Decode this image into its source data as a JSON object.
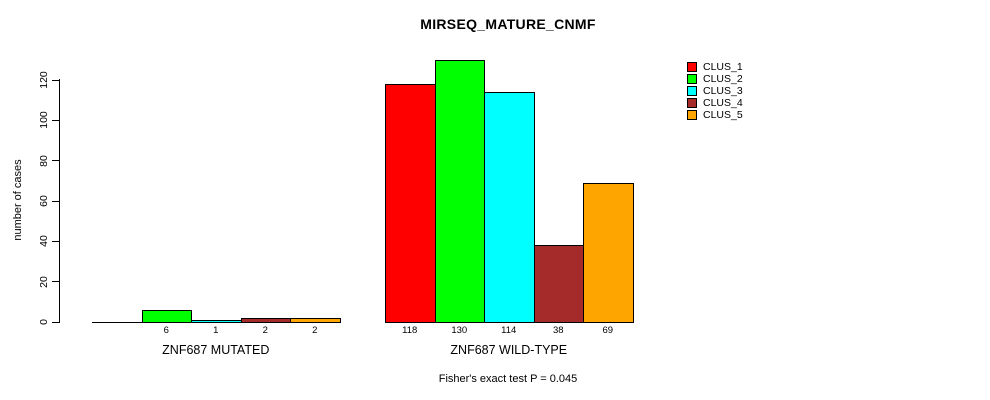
{
  "chart_data": {
    "type": "bar",
    "title": "MIRSEQ_MATURE_CNMF",
    "ylabel": "number of cases",
    "xlabel": "",
    "ylim": [
      0,
      120
    ],
    "yticks": [
      0,
      20,
      40,
      60,
      80,
      100,
      120
    ],
    "grid": false,
    "legend_position": "top-right",
    "legend": [
      {
        "name": "CLUS_1",
        "color": "#FF0000"
      },
      {
        "name": "CLUS_2",
        "color": "#00FF00"
      },
      {
        "name": "CLUS_3",
        "color": "#00FFFF"
      },
      {
        "name": "CLUS_4",
        "color": "#A52A2A"
      },
      {
        "name": "CLUS_5",
        "color": "#FFA500"
      }
    ],
    "categories": [
      "ZNF687 MUTATED",
      "ZNF687 WILD-TYPE"
    ],
    "series": [
      {
        "name": "CLUS_1",
        "color": "#FF0000",
        "values": [
          0,
          118
        ]
      },
      {
        "name": "CLUS_2",
        "color": "#00FF00",
        "values": [
          6,
          130
        ]
      },
      {
        "name": "CLUS_3",
        "color": "#00FFFF",
        "values": [
          1,
          114
        ]
      },
      {
        "name": "CLUS_4",
        "color": "#A52A2A",
        "values": [
          2,
          38
        ]
      },
      {
        "name": "CLUS_5",
        "color": "#FFA500",
        "values": [
          2,
          69
        ]
      }
    ],
    "bar_value_labels": [
      [
        "",
        "6",
        "1",
        "2",
        "2"
      ],
      [
        "118",
        "130",
        "114",
        "38",
        "69"
      ]
    ],
    "footnote": "Fisher's exact test P = 0.045"
  }
}
